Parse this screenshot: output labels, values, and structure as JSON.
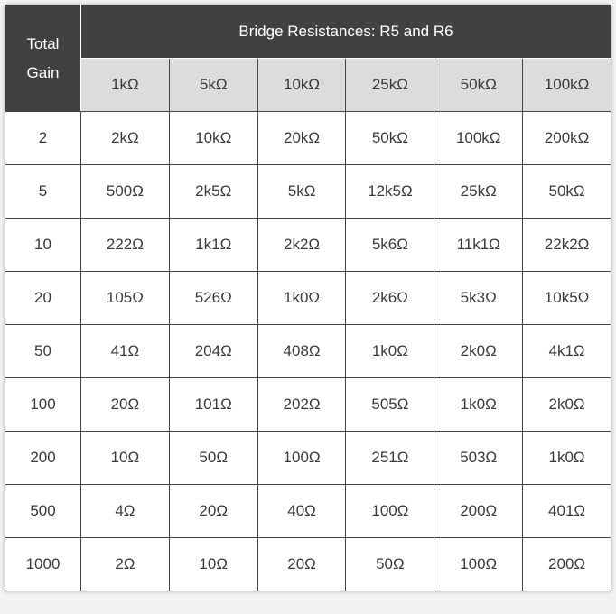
{
  "header": {
    "corner_label": "Total Gain",
    "group_label": "Bridge Resistances: R5 and R6",
    "columns": [
      "1kΩ",
      "5kΩ",
      "10kΩ",
      "25kΩ",
      "50kΩ",
      "100kΩ"
    ]
  },
  "rows": [
    {
      "gain": "2",
      "values": [
        "2kΩ",
        "10kΩ",
        "20kΩ",
        "50kΩ",
        "100kΩ",
        "200kΩ"
      ]
    },
    {
      "gain": "5",
      "values": [
        "500Ω",
        "2k5Ω",
        "5kΩ",
        "12k5Ω",
        "25kΩ",
        "50kΩ"
      ]
    },
    {
      "gain": "10",
      "values": [
        "222Ω",
        "1k1Ω",
        "2k2Ω",
        "5k6Ω",
        "11k1Ω",
        "22k2Ω"
      ]
    },
    {
      "gain": "20",
      "values": [
        "105Ω",
        "526Ω",
        "1k0Ω",
        "2k6Ω",
        "5k3Ω",
        "10k5Ω"
      ]
    },
    {
      "gain": "50",
      "values": [
        "41Ω",
        "204Ω",
        "408Ω",
        "1k0Ω",
        "2k0Ω",
        "4k1Ω"
      ]
    },
    {
      "gain": "100",
      "values": [
        "20Ω",
        "101Ω",
        "202Ω",
        "505Ω",
        "1k0Ω",
        "2k0Ω"
      ]
    },
    {
      "gain": "200",
      "values": [
        "10Ω",
        "50Ω",
        "100Ω",
        "251Ω",
        "503Ω",
        "1k0Ω"
      ]
    },
    {
      "gain": "500",
      "values": [
        "4Ω",
        "20Ω",
        "40Ω",
        "100Ω",
        "200Ω",
        "401Ω"
      ]
    },
    {
      "gain": "1000",
      "values": [
        "2Ω",
        "10Ω",
        "20Ω",
        "50Ω",
        "100Ω",
        "200Ω"
      ]
    }
  ]
}
